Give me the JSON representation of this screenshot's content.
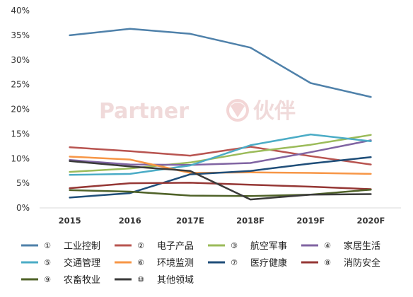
{
  "watermark": {
    "latin": "Partner",
    "chinese": "伙伴"
  },
  "chart_data": {
    "type": "line",
    "categories": [
      "2015",
      "2016",
      "2017E",
      "2018F",
      "2019F",
      "2020F"
    ],
    "ylim": [
      0,
      0.4
    ],
    "yticks": [
      0,
      0.05,
      0.1,
      0.15,
      0.2,
      0.25,
      0.3,
      0.35,
      0.4
    ],
    "ytick_labels": [
      "0%",
      "5%",
      "10%",
      "15%",
      "20%",
      "25%",
      "30%",
      "35%",
      "40%"
    ],
    "grid": false,
    "legend_position": "bottom",
    "series": [
      {
        "marker": "①",
        "name": "工业控制",
        "color": "#4f81aa",
        "values": [
          0.35,
          0.363,
          0.353,
          0.325,
          0.253,
          0.225
        ]
      },
      {
        "marker": "②",
        "name": "电子产品",
        "color": "#b85450",
        "values": [
          0.123,
          0.115,
          0.106,
          0.124,
          0.105,
          0.088
        ]
      },
      {
        "marker": "③",
        "name": "航空军事",
        "color": "#9bbb59",
        "values": [
          0.073,
          0.08,
          0.092,
          0.113,
          0.128,
          0.148
        ]
      },
      {
        "marker": "④",
        "name": "家居生活",
        "color": "#8064a2",
        "values": [
          0.097,
          0.088,
          0.087,
          0.091,
          0.113,
          0.137
        ]
      },
      {
        "marker": "⑤",
        "name": "交通管理",
        "color": "#4bacc6",
        "values": [
          0.067,
          0.069,
          0.086,
          0.127,
          0.149,
          0.135
        ]
      },
      {
        "marker": "⑥",
        "name": "环境监测",
        "color": "#f79646",
        "values": [
          0.104,
          0.098,
          0.071,
          0.072,
          0.071,
          0.069
        ]
      },
      {
        "marker": "⑦",
        "name": "医疗健康",
        "color": "#1f4e79",
        "values": [
          0.021,
          0.03,
          0.068,
          0.075,
          0.09,
          0.103
        ]
      },
      {
        "marker": "⑧",
        "name": "消防安全",
        "color": "#953735",
        "values": [
          0.04,
          0.05,
          0.051,
          0.047,
          0.043,
          0.038
        ]
      },
      {
        "marker": "⑨",
        "name": "农畜牧业",
        "color": "#4f6228",
        "values": [
          0.036,
          0.033,
          0.025,
          0.024,
          0.027,
          0.037
        ]
      },
      {
        "marker": "⑩",
        "name": "其他领域",
        "color": "#3a3a3a",
        "values": [
          0.095,
          0.084,
          0.075,
          0.017,
          0.027,
          0.028
        ]
      }
    ]
  }
}
